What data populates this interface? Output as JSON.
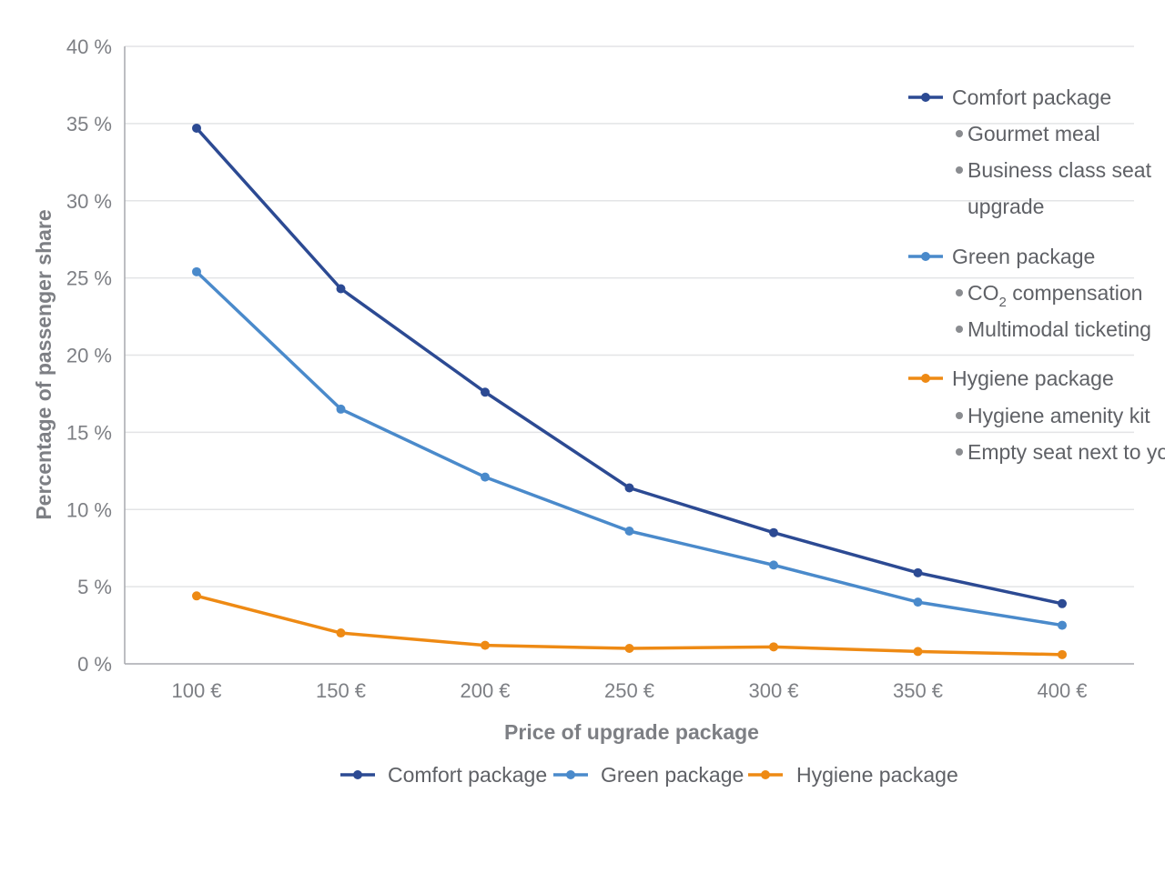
{
  "chart_data": {
    "type": "line",
    "categories": [
      "100 €",
      "150 €",
      "200 €",
      "250 €",
      "300 €",
      "350 €",
      "400 €"
    ],
    "series": [
      {
        "name": "Comfort package",
        "color": "#2c4a93",
        "values": [
          34.7,
          24.3,
          17.6,
          11.4,
          8.5,
          5.9,
          3.9
        ]
      },
      {
        "name": "Green package",
        "color": "#4a8acb",
        "values": [
          25.4,
          16.5,
          12.1,
          8.6,
          6.4,
          4.0,
          2.5
        ]
      },
      {
        "name": "Hygiene package",
        "color": "#ee8a14",
        "values": [
          4.4,
          2.0,
          1.2,
          1.0,
          1.1,
          0.8,
          0.6
        ]
      }
    ],
    "ylim": [
      0,
      40
    ],
    "yticks": [
      "0 %",
      "5 %",
      "10 %",
      "15 %",
      "20 %",
      "25 %",
      "30 %",
      "35 %",
      "40 %"
    ],
    "xlabel": "Price of upgrade package",
    "ylabel": "Percentage of passenger share",
    "grid": true,
    "legend_position": "bottom",
    "annotation_legend": [
      {
        "name": "Comfort package",
        "color": "#2c4a93",
        "items": [
          [
            "Gourmet meal"
          ],
          [
            "Business class seat",
            "upgrade"
          ]
        ]
      },
      {
        "name": "Green package",
        "color": "#4a8acb",
        "items": [
          [
            "CO",
            "2",
            " compensation"
          ],
          [
            "Multimodal ticketing"
          ]
        ]
      },
      {
        "name": "Hygiene package",
        "color": "#ee8a14",
        "items": [
          [
            "Hygiene amenity kit"
          ],
          [
            "Empty seat next to you"
          ]
        ]
      }
    ],
    "colors": {
      "grid": "#e3e4e6",
      "axis": "#a7a9ad",
      "text": "#7d7f84",
      "legend_text": "#5f6166",
      "bullet": "#8a8c90"
    }
  }
}
